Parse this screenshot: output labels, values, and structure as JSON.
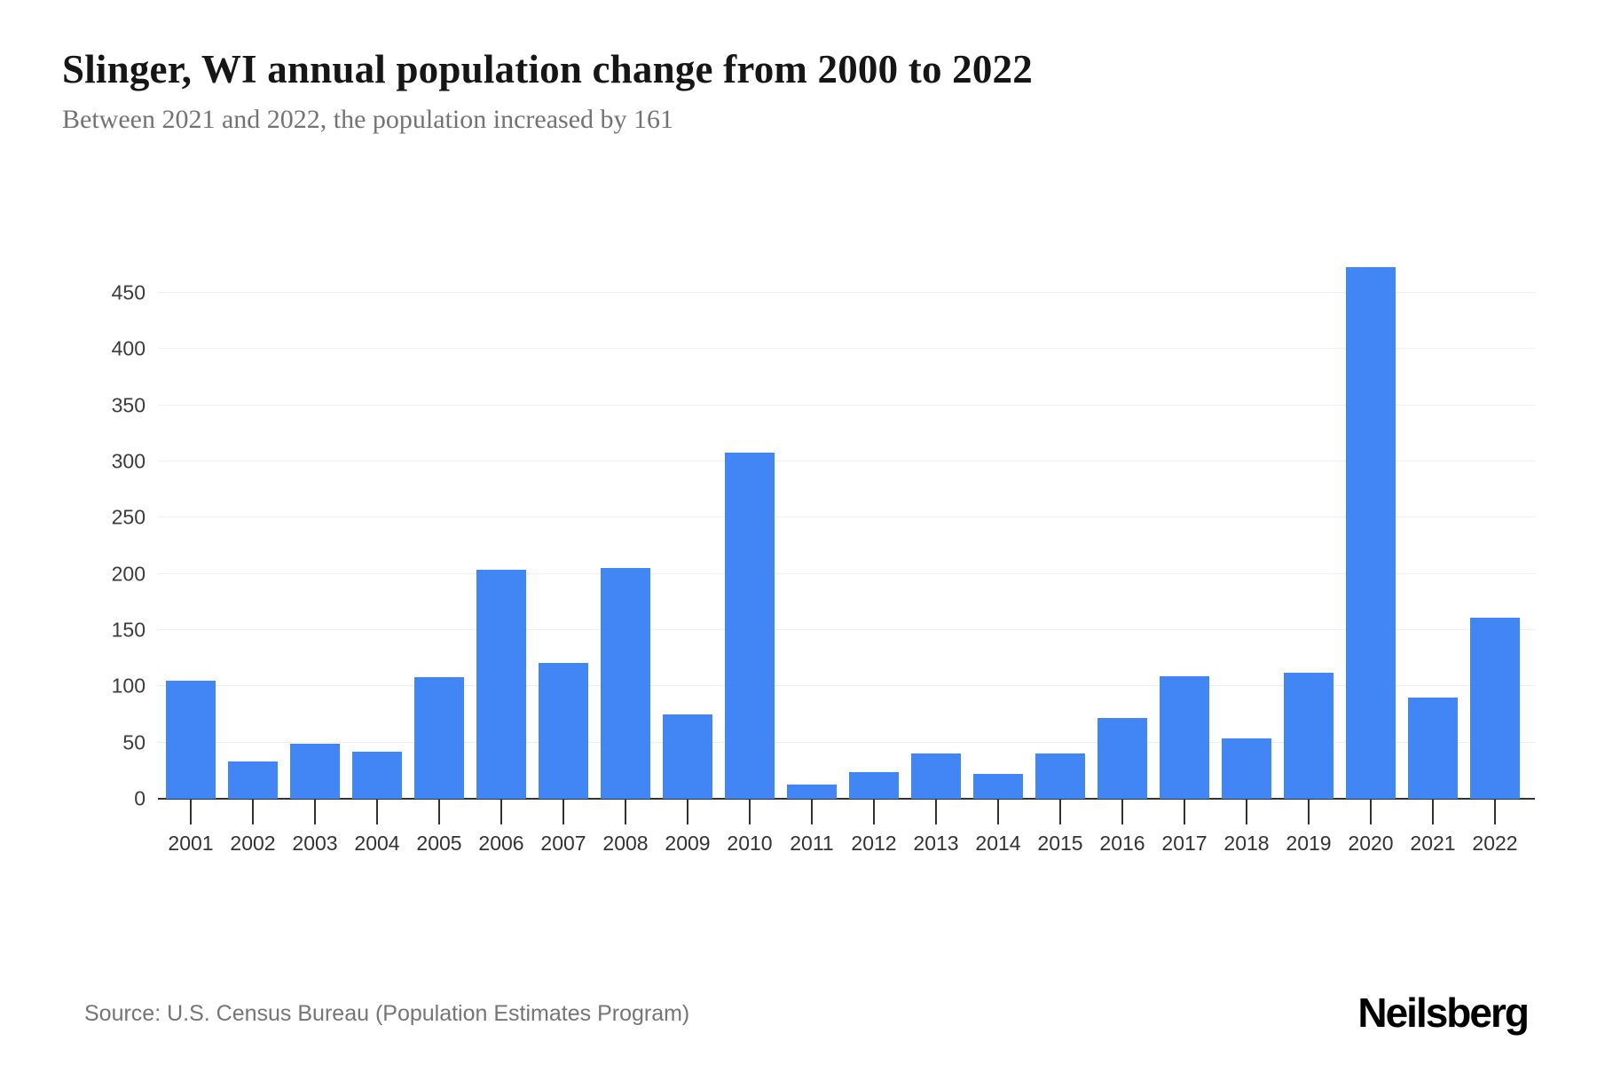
{
  "header": {
    "title": "Slinger, WI annual population change from 2000 to 2022",
    "subtitle": "Between 2021 and 2022, the population increased by 161"
  },
  "chart_data": {
    "type": "bar",
    "title": "Slinger, WI annual population change from 2000 to 2022",
    "categories": [
      "2001",
      "2002",
      "2003",
      "2004",
      "2005",
      "2006",
      "2007",
      "2008",
      "2009",
      "2010",
      "2011",
      "2012",
      "2013",
      "2014",
      "2015",
      "2016",
      "2017",
      "2018",
      "2019",
      "2020",
      "2021",
      "2022"
    ],
    "values": [
      105,
      33,
      49,
      42,
      108,
      204,
      121,
      205,
      75,
      308,
      13,
      24,
      40,
      22,
      40,
      72,
      109,
      54,
      112,
      473,
      90,
      161
    ],
    "xlabel": "",
    "ylabel": "",
    "ylim": [
      0,
      509
    ],
    "yticks": [
      0,
      50,
      100,
      150,
      200,
      250,
      300,
      350,
      400,
      450
    ],
    "grid": true,
    "legend": "none",
    "bar_color": "#4285F4",
    "gridline_color": "#efefef",
    "axis_color": "#333333"
  },
  "footer": {
    "source": "Source: U.S. Census Bureau (Population Estimates Program)",
    "brand": "Neilsberg"
  }
}
